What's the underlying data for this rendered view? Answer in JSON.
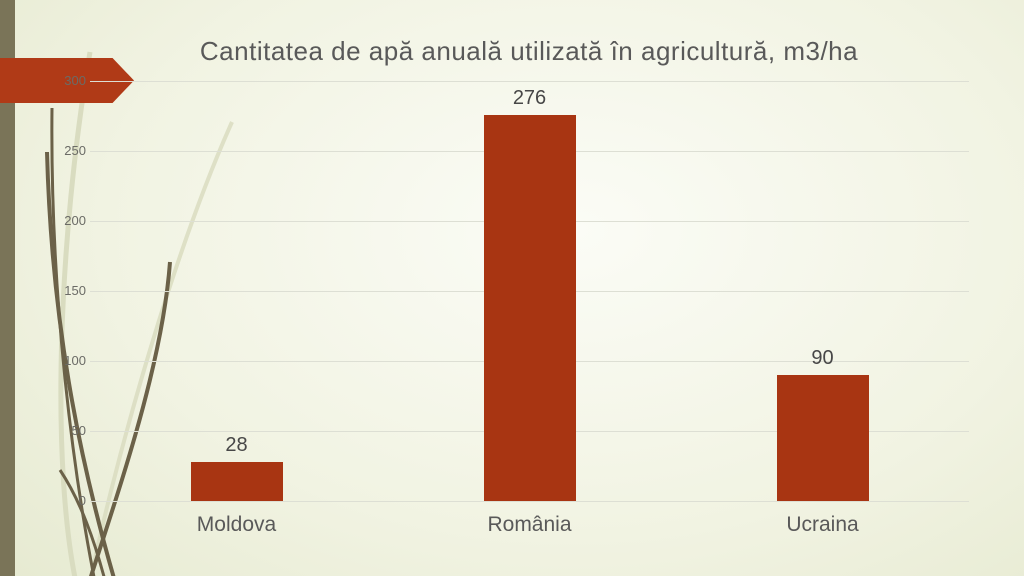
{
  "slide": {
    "title": "Cantitatea de apă anuală utilizată în agricultură, m3/ha"
  },
  "chart_data": {
    "type": "bar",
    "title": "Cantitatea de apă anuală utilizată în agricultură, m3/ha",
    "categories": [
      "Moldova",
      "România",
      "Ucraina"
    ],
    "values": [
      28,
      276,
      90
    ],
    "data_labels": [
      "28",
      "276",
      "90"
    ],
    "xlabel": "",
    "ylabel": "",
    "ylim": [
      0,
      300
    ],
    "yticks": [
      0,
      50,
      100,
      150,
      200,
      250,
      300
    ],
    "grid": true,
    "legend": false,
    "bar_color": "#a83512"
  },
  "colors": {
    "bar": "#a83512",
    "arrow": "#b03a17",
    "stripe": "#7a7458",
    "grid": "#dddfd4",
    "title_text": "#595959",
    "axis_text": "#6b6b66",
    "label_text": "#474747",
    "cat_text": "#595959",
    "stem_dark": "#6b6148",
    "stem_light": "#d9dcc0",
    "bg_center": "#fbfcf6",
    "bg_edge": "#dfe4c6"
  }
}
